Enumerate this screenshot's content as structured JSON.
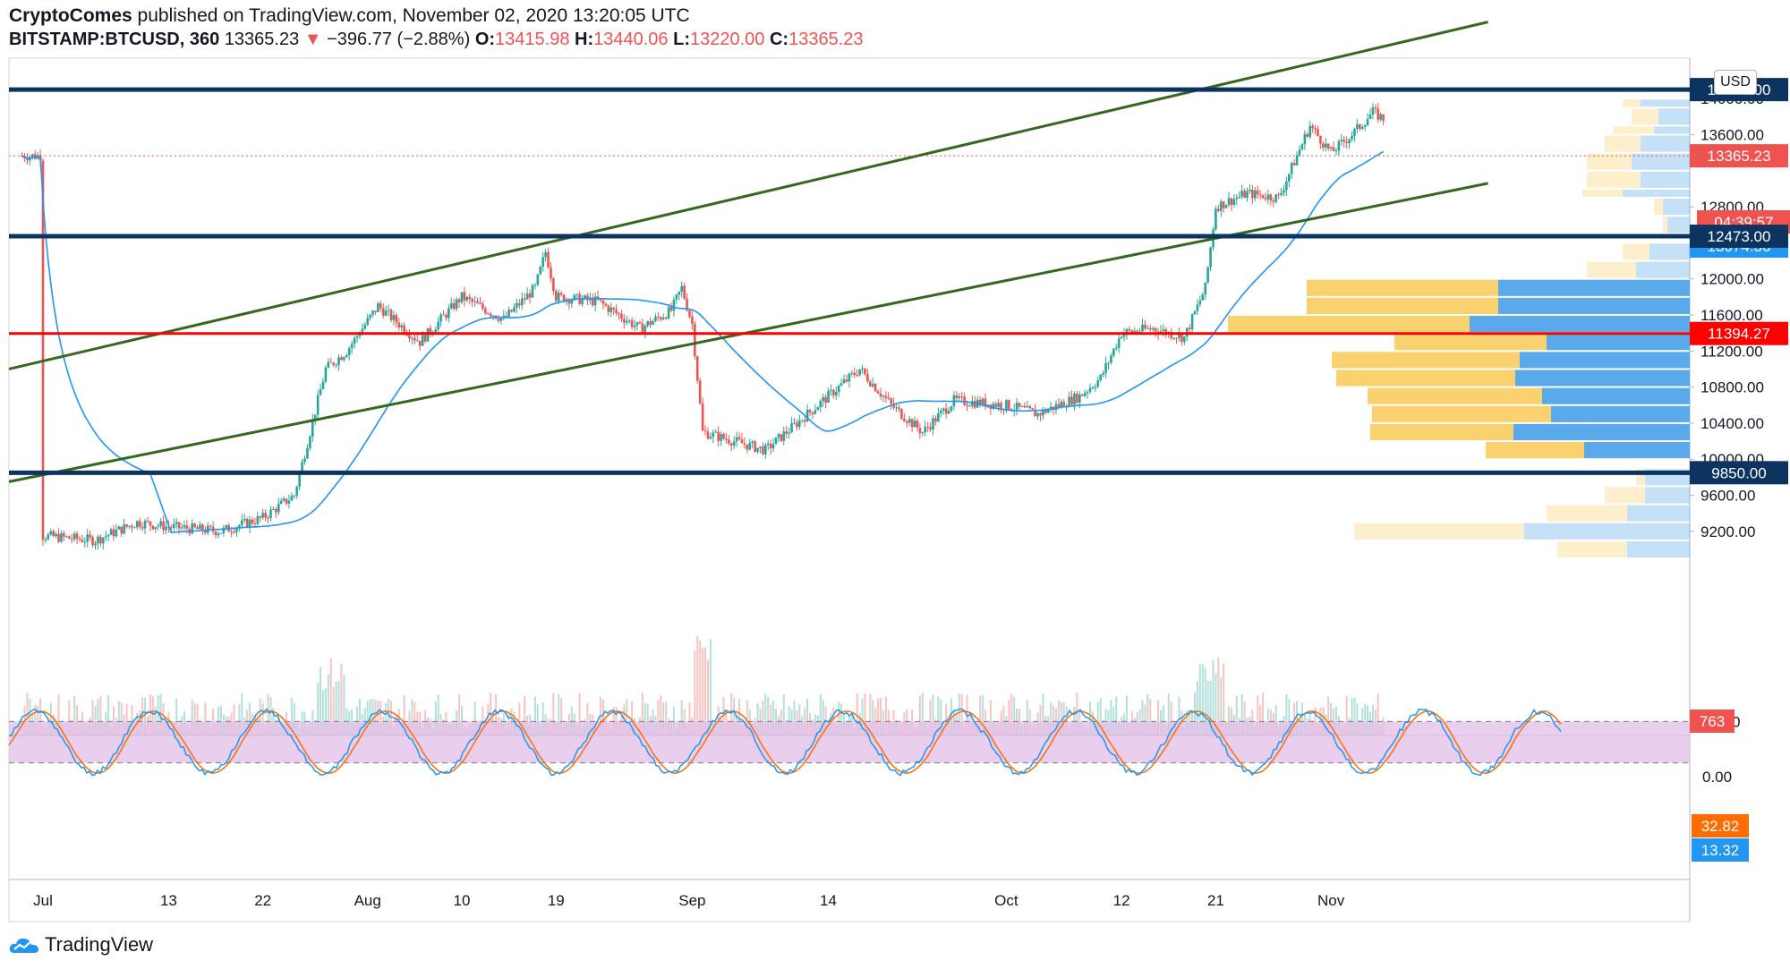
{
  "header": {
    "author": "CryptoComes",
    "published_text": "published on TradingView.com, November 02, 2020 13:20:05 UTC",
    "symbol": "BITSTAMP:BTCUSD, 360",
    "price": "13365.23",
    "change": "−396.77 (−2.88%)",
    "open_label": "O:",
    "open": "13415.98",
    "high_label": "H:",
    "high": "13440.06",
    "low_label": "L:",
    "low": "13220.00",
    "close_label": "C:",
    "close": "13365.23"
  },
  "brand": "TradingView",
  "currency_button": "USD",
  "colors": {
    "up": "#26a69a",
    "down": "#ef5350",
    "ma": "#2196f3",
    "channel": "#33691e",
    "hline_dark": "#0d3461",
    "hline_red": "#ff0000",
    "vp_up": "#f9d16e",
    "vp_down": "#5aa9eb",
    "rsi_bg": "#e1bee7"
  },
  "chart_data": [
    {
      "type": "candlestick",
      "title": "",
      "y_axis_ticks": [
        "14000.00",
        "13600.00",
        "12800.00",
        "12000.00",
        "11600.00",
        "11200.00",
        "10800.00",
        "10400.00",
        "10000.00",
        "9600.00",
        "9200.00"
      ],
      "x_axis_ticks": [
        "Jul",
        "13",
        "22",
        "Aug",
        "10",
        "19",
        "Sep",
        "14",
        "Oct",
        "12",
        "21",
        "Nov"
      ],
      "ylim": [
        8800,
        14400
      ],
      "price_labels": [
        {
          "value": "14100.00",
          "kind": "resistance"
        },
        {
          "value": "13365.23",
          "kind": "last-price"
        },
        {
          "value": "04:39:57",
          "kind": "countdown"
        },
        {
          "value": "13074.36",
          "kind": "ma"
        },
        {
          "value": "12473.00",
          "kind": "level"
        },
        {
          "value": "11394.27",
          "kind": "red-level"
        },
        {
          "value": "9850.00",
          "kind": "support"
        },
        {
          "value": "763",
          "kind": "volume"
        }
      ],
      "horizontal_levels": [
        14100,
        12473,
        11394.27,
        9850
      ],
      "approx_close_path": [
        {
          "x": "Jul 1",
          "y": 9150
        },
        {
          "x": "Jul 13",
          "y": 9250
        },
        {
          "x": "Jul 22",
          "y": 9350
        },
        {
          "x": "Jul 27",
          "y": 11000
        },
        {
          "x": "Aug 2",
          "y": 11700
        },
        {
          "x": "Aug 10",
          "y": 11800
        },
        {
          "x": "Aug 17",
          "y": 12300
        },
        {
          "x": "Aug 19",
          "y": 11800
        },
        {
          "x": "Aug 27",
          "y": 11300
        },
        {
          "x": "Sep 1",
          "y": 11900
        },
        {
          "x": "Sep 3",
          "y": 10300
        },
        {
          "x": "Sep 9",
          "y": 10100
        },
        {
          "x": "Sep 14",
          "y": 10700
        },
        {
          "x": "Sep 18",
          "y": 11000
        },
        {
          "x": "Sep 23",
          "y": 10300
        },
        {
          "x": "Oct 1",
          "y": 10600
        },
        {
          "x": "Oct 8",
          "y": 10700
        },
        {
          "x": "Oct 12",
          "y": 11400
        },
        {
          "x": "Oct 20",
          "y": 11900
        },
        {
          "x": "Oct 21",
          "y": 12800
        },
        {
          "x": "Oct 27",
          "y": 13700
        },
        {
          "x": "Oct 31",
          "y": 13800
        },
        {
          "x": "Nov 2",
          "y": 13365.23
        }
      ]
    },
    {
      "type": "line",
      "title": "",
      "y_axis_ticks": [
        "80.00",
        "0.00"
      ],
      "ylim": [
        0,
        100
      ],
      "bands": [
        80,
        20
      ],
      "value_labels": [
        {
          "value": "32.82",
          "series": "orange"
        },
        {
          "value": "13.32",
          "series": "blue"
        }
      ]
    }
  ]
}
